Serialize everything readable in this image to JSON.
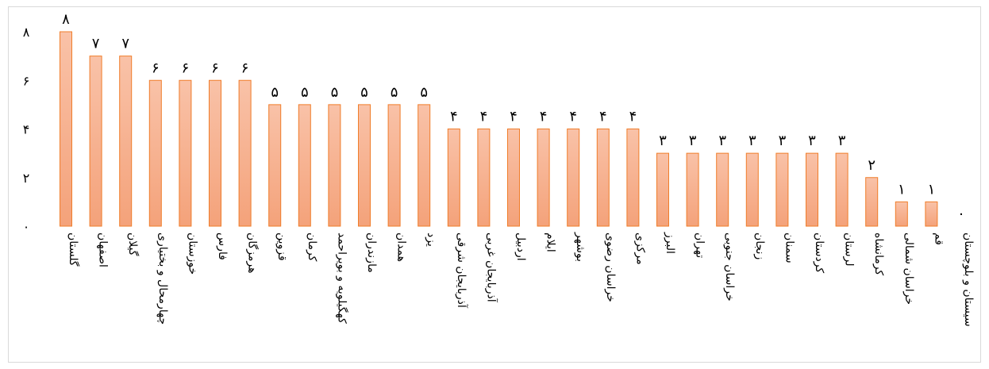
{
  "chart_data": {
    "type": "bar",
    "categories": [
      "گلستان",
      "اصفهان",
      "گیلان",
      "چهارمحال و بختیاری",
      "خوزستان",
      "فارس",
      "هرمزگان",
      "قزوین",
      "کرمان",
      "کهگیلویه و بویراحمد",
      "مازندران",
      "همدان",
      "یزد",
      "آذربایجان شرقی",
      "آذربایجان غربی",
      "اردبیل",
      "ایلام",
      "بوشهر",
      "خراسان رضوی",
      "مرکزی",
      "البرز",
      "تهران",
      "خراسان جنوبی",
      "زنجان",
      "سمنان",
      "کردستان",
      "لرستان",
      "کرمانشاه",
      "خراسان شمالی",
      "قم",
      "سیستان و بلوچستان"
    ],
    "values": [
      8,
      7,
      7,
      6,
      6,
      6,
      6,
      5,
      5,
      5,
      5,
      5,
      5,
      4,
      4,
      4,
      4,
      4,
      4,
      4,
      3,
      3,
      3,
      3,
      3,
      3,
      3,
      2,
      1,
      1,
      0
    ],
    "data_labels": [
      "۸",
      "۷",
      "۷",
      "۶",
      "۶",
      "۶",
      "۶",
      "۵",
      "۵",
      "۵",
      "۵",
      "۵",
      "۵",
      "۴",
      "۴",
      "۴",
      "۴",
      "۴",
      "۴",
      "۴",
      "۳",
      "۳",
      "۳",
      "۳",
      "۳",
      "۳",
      "۳",
      "۲",
      "۱",
      "۱",
      "۰"
    ],
    "yticks": [
      0,
      2,
      4,
      6,
      8
    ],
    "ytick_labels": [
      "۰",
      "۲",
      "۴",
      "۶",
      "۸"
    ],
    "ylim": [
      0,
      8
    ],
    "grid": false,
    "bar_color_top": "#f9c2a8",
    "bar_color_bottom": "#f4a27a",
    "bar_edge_color": "#f07d2a",
    "title": "",
    "xlabel": "",
    "ylabel": ""
  }
}
